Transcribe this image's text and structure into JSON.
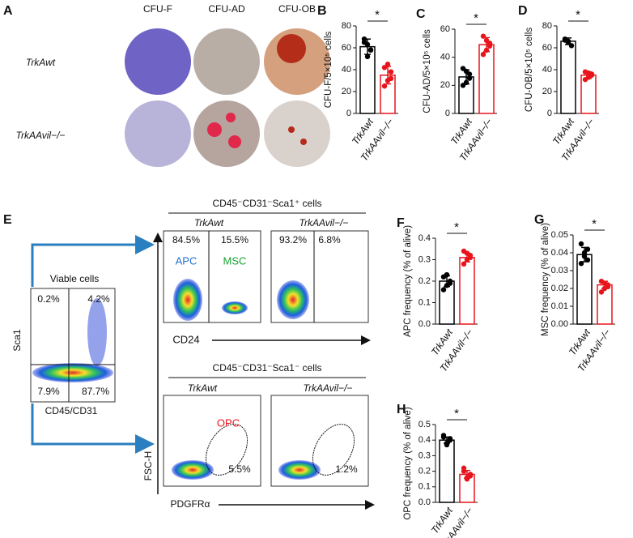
{
  "panel_a": {
    "label": "A",
    "columns": [
      "CFU-F",
      "CFU-AD",
      "CFU-OB"
    ],
    "rows": [
      "TrkAwt",
      "TrkAAvil−/−"
    ]
  },
  "panel_e": {
    "label": "E",
    "viable_title": "Viable cells",
    "viable_y": "Sca1",
    "viable_x": "CD45/CD31",
    "quadrants": [
      "0.2%",
      "4.2%",
      "7.9%",
      "87.7%"
    ],
    "top_title": "CD45⁻CD31⁻Sca1⁺ cells",
    "top_groups": [
      "TrkAwt",
      "TrkAAvil−/−"
    ],
    "top_percents": [
      "84.5%",
      "15.5%",
      "93.2%",
      "6.8%"
    ],
    "apc": "APC",
    "msc": "MSC",
    "top_x": "CD24",
    "bottom_title": "CD45⁻CD31⁻Sca1⁻ cells",
    "bottom_groups": [
      "TrkAwt",
      "TrkAAvil−/−"
    ],
    "opc": "OPC",
    "bottom_percents": [
      "5.5%",
      "1.2%"
    ],
    "bottom_y": "FSC-H",
    "bottom_x": "PDGFRα"
  },
  "chart_data": [
    {
      "type": "bar",
      "panel": "B",
      "ylabel": "CFU-F/5×10⁵ cells",
      "categories": [
        "TrkAwt",
        "TrkAAvil−/−"
      ],
      "colors": [
        "#000000",
        "#e8141b"
      ],
      "values": [
        61,
        35
      ],
      "errors": [
        7,
        8
      ],
      "points": [
        [
          68,
          63,
          58,
          65,
          52,
          58
        ],
        [
          42,
          30,
          38,
          25,
          45,
          32
        ]
      ],
      "annotation": "*",
      "ylim": [
        0,
        80
      ],
      "yticks": [
        0,
        20,
        40,
        60,
        80
      ]
    },
    {
      "type": "bar",
      "panel": "C",
      "ylabel": "CFU-AD/5×10⁵ cells",
      "categories": [
        "TrkAwt",
        "TrkAAvil−/−"
      ],
      "colors": [
        "#000000",
        "#e8141b"
      ],
      "values": [
        26,
        49
      ],
      "errors": [
        5,
        5
      ],
      "points": [
        [
          32,
          22,
          28,
          20,
          30,
          25
        ],
        [
          55,
          45,
          50,
          42,
          52,
          48
        ]
      ],
      "annotation": "*",
      "ylim": [
        0,
        60
      ],
      "yticks": [
        0,
        20,
        40,
        60
      ]
    },
    {
      "type": "bar",
      "panel": "D",
      "ylabel": "CFU-OB/5×10⁵ cells",
      "categories": [
        "TrkAwt",
        "TrkAAvil−/−"
      ],
      "colors": [
        "#000000",
        "#e8141b"
      ],
      "values": [
        66,
        35
      ],
      "errors": [
        3,
        3
      ],
      "points": [
        [
          68,
          65,
          62,
          67,
          66
        ],
        [
          38,
          33,
          36,
          31,
          37,
          35
        ]
      ],
      "annotation": "*",
      "ylim": [
        0,
        80
      ],
      "yticks": [
        0,
        20,
        40,
        60,
        80
      ]
    },
    {
      "type": "bar",
      "panel": "F",
      "ylabel": "APC frequency (% of alive)",
      "categories": [
        "TrkAwt",
        "TrkAAvil−/−"
      ],
      "colors": [
        "#000000",
        "#e8141b"
      ],
      "values": [
        0.2,
        0.31
      ],
      "errors": [
        0.025,
        0.02
      ],
      "points": [
        [
          0.22,
          0.18,
          0.2,
          0.16,
          0.23,
          0.19
        ],
        [
          0.34,
          0.3,
          0.32,
          0.28,
          0.33,
          0.31
        ]
      ],
      "annotation": "*",
      "ylim": [
        0,
        0.4
      ],
      "yticks": [
        {
          "value": 0,
          "label": "0.0"
        },
        0.1,
        0.2,
        0.3,
        0.4
      ]
    },
    {
      "type": "bar",
      "panel": "G",
      "ylabel": "MSC frequency (% of alive)",
      "categories": [
        "TrkAwt",
        "TrkAAvil−/−"
      ],
      "colors": [
        "#000000",
        "#e8141b"
      ],
      "values": [
        0.039,
        0.022
      ],
      "errors": [
        0.004,
        0.002
      ],
      "points": [
        [
          0.045,
          0.038,
          0.042,
          0.034,
          0.04,
          0.036
        ],
        [
          0.024,
          0.02,
          0.022,
          0.018,
          0.023,
          0.021
        ]
      ],
      "annotation": "*",
      "ylim": [
        0,
        0.05
      ],
      "yticks": [
        {
          "value": 0,
          "label": "0.00"
        },
        0.01,
        0.02,
        0.03,
        0.04,
        0.05
      ]
    },
    {
      "type": "bar",
      "panel": "H",
      "ylabel": "OPC frequency (% of alive)",
      "categories": [
        "TrkAwt",
        "TrkAAvil−/−"
      ],
      "colors": [
        "#000000",
        "#e8141b"
      ],
      "values": [
        0.4,
        0.18
      ],
      "errors": [
        0.02,
        0.025
      ],
      "points": [
        [
          0.42,
          0.38,
          0.4,
          0.43,
          0.37,
          0.41
        ],
        [
          0.2,
          0.16,
          0.18,
          0.22,
          0.15,
          0.17
        ]
      ],
      "annotation": "*",
      "ylim": [
        0,
        0.5
      ],
      "yticks": [
        {
          "value": 0,
          "label": "0.0"
        },
        0.1,
        0.2,
        0.3,
        0.4,
        0.5
      ]
    }
  ]
}
